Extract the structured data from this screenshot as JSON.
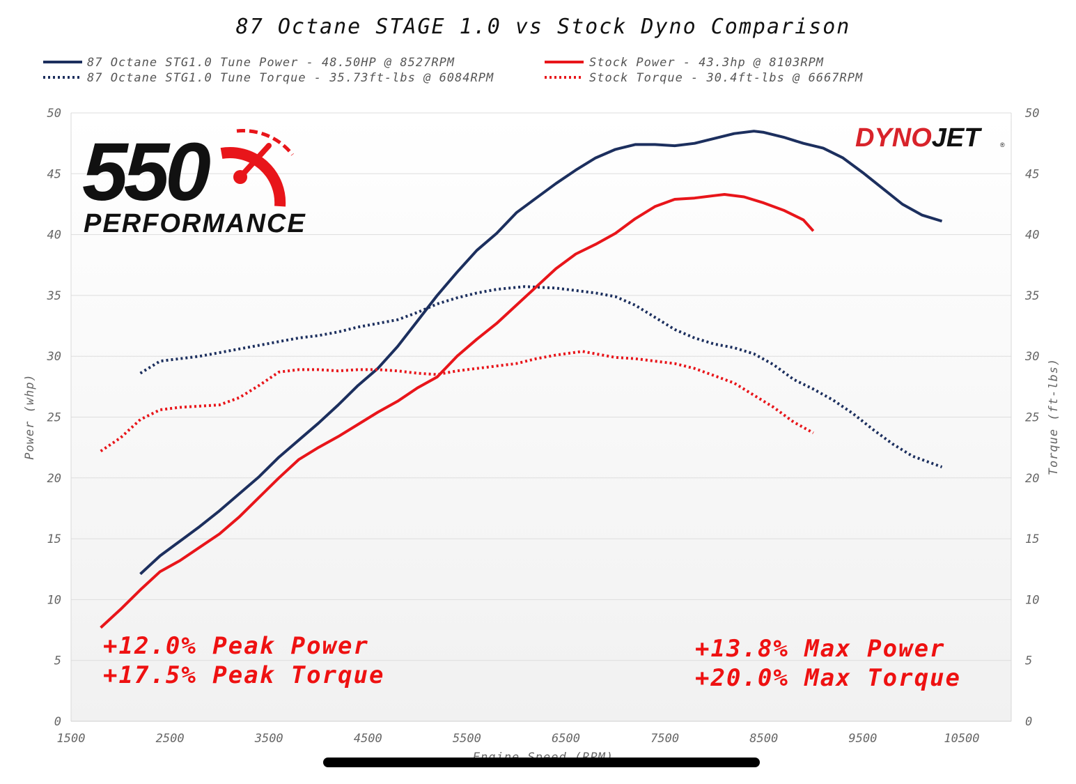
{
  "chart_data": {
    "type": "line",
    "title": "87 Octane STAGE 1.0 vs Stock Dyno Comparison",
    "xlabel": "Engine Speed (RPM)",
    "ylabel": "Power (whp)",
    "y2label": "Torque (ft-lbs)",
    "xlim": [
      1500,
      11000
    ],
    "ylim": [
      0,
      50
    ],
    "y2lim": [
      0,
      50
    ],
    "x_ticks": [
      "1500",
      "2500",
      "3500",
      "4500",
      "5500",
      "6500",
      "7500",
      "8500",
      "9500",
      "10500"
    ],
    "y_ticks": [
      "0",
      "5",
      "10",
      "15",
      "20",
      "25",
      "30",
      "35",
      "40",
      "45",
      "50"
    ],
    "grid": true,
    "legend_position": "top",
    "series": [
      {
        "name": "87 Octane STG1.0 Tune Power - 48.50HP @ 8527RPM",
        "axis": "left",
        "color": "#1c2f5e",
        "style": "solid",
        "x": [
          2200,
          2400,
          2600,
          2800,
          3000,
          3200,
          3400,
          3600,
          3800,
          4000,
          4200,
          4400,
          4600,
          4800,
          5000,
          5200,
          5400,
          5600,
          5800,
          6000,
          6200,
          6400,
          6600,
          6800,
          7000,
          7200,
          7400,
          7600,
          7800,
          8000,
          8200,
          8400,
          8500,
          8700,
          8900,
          9100,
          9300,
          9500,
          9700,
          9900,
          10100,
          10300
        ],
        "y": [
          12.1,
          13.6,
          14.8,
          16.0,
          17.3,
          18.7,
          20.1,
          21.7,
          23.1,
          24.5,
          26.0,
          27.6,
          29.0,
          30.8,
          32.9,
          35.0,
          36.9,
          38.7,
          40.1,
          41.8,
          43.0,
          44.2,
          45.3,
          46.3,
          47.0,
          47.4,
          47.4,
          47.3,
          47.5,
          47.9,
          48.3,
          48.5,
          48.4,
          48.0,
          47.5,
          47.1,
          46.3,
          45.1,
          43.8,
          42.5,
          41.6,
          41.1
        ]
      },
      {
        "name": "87 Octane STG1.0 Tune Torque - 35.73ft-lbs @ 6084RPM",
        "axis": "right",
        "color": "#1c2f5e",
        "style": "dotted",
        "x": [
          2200,
          2400,
          2600,
          2800,
          3000,
          3200,
          3400,
          3600,
          3800,
          4000,
          4200,
          4400,
          4600,
          4800,
          5000,
          5200,
          5400,
          5600,
          5800,
          6084,
          6400,
          6600,
          6800,
          7000,
          7200,
          7400,
          7600,
          7800,
          8000,
          8200,
          8400,
          8600,
          8800,
          9000,
          9200,
          9400,
          9600,
          9800,
          10000,
          10300
        ],
        "y": [
          28.6,
          29.6,
          29.8,
          30.0,
          30.3,
          30.6,
          30.9,
          31.2,
          31.5,
          31.7,
          32.0,
          32.4,
          32.7,
          33.0,
          33.6,
          34.3,
          34.8,
          35.2,
          35.5,
          35.73,
          35.6,
          35.4,
          35.2,
          34.9,
          34.2,
          33.2,
          32.2,
          31.5,
          31.0,
          30.7,
          30.2,
          29.3,
          28.1,
          27.3,
          26.4,
          25.3,
          24.0,
          22.8,
          21.8,
          20.9
        ]
      },
      {
        "name": "Stock Power - 43.3hp @ 8103RPM",
        "axis": "left",
        "color": "#e8151a",
        "style": "solid",
        "x": [
          1800,
          2000,
          2200,
          2400,
          2600,
          2800,
          3000,
          3200,
          3400,
          3600,
          3800,
          4000,
          4200,
          4400,
          4600,
          4800,
          5000,
          5200,
          5400,
          5600,
          5800,
          6000,
          6200,
          6400,
          6600,
          6800,
          7000,
          7200,
          7400,
          7600,
          7800,
          8000,
          8103,
          8300,
          8500,
          8700,
          8900,
          9000
        ],
        "y": [
          7.7,
          9.2,
          10.8,
          12.3,
          13.2,
          14.3,
          15.4,
          16.8,
          18.4,
          20.0,
          21.5,
          22.5,
          23.4,
          24.4,
          25.4,
          26.3,
          27.4,
          28.3,
          30.0,
          31.4,
          32.7,
          34.2,
          35.7,
          37.2,
          38.4,
          39.2,
          40.1,
          41.3,
          42.3,
          42.9,
          43.0,
          43.2,
          43.3,
          43.1,
          42.6,
          42.0,
          41.2,
          40.3
        ]
      },
      {
        "name": "Stock Torque - 30.4ft-lbs @ 6667RPM",
        "axis": "right",
        "color": "#e8151a",
        "style": "dotted",
        "x": [
          1800,
          2000,
          2200,
          2400,
          2600,
          2800,
          3000,
          3200,
          3400,
          3600,
          3800,
          4000,
          4200,
          4400,
          4600,
          4800,
          5000,
          5200,
          5400,
          5600,
          5800,
          6000,
          6200,
          6400,
          6667,
          6800,
          7000,
          7200,
          7400,
          7600,
          7800,
          8000,
          8200,
          8400,
          8600,
          8800,
          9000
        ],
        "y": [
          22.2,
          23.3,
          24.8,
          25.6,
          25.8,
          25.9,
          26.0,
          26.6,
          27.6,
          28.7,
          28.9,
          28.9,
          28.8,
          28.9,
          28.9,
          28.8,
          28.6,
          28.5,
          28.8,
          29.0,
          29.2,
          29.4,
          29.8,
          30.1,
          30.4,
          30.2,
          29.9,
          29.8,
          29.6,
          29.4,
          29.0,
          28.4,
          27.8,
          26.8,
          25.8,
          24.6,
          23.7
        ]
      }
    ],
    "annotations": [
      "+12.0% Peak Power",
      "+17.5% Peak Torque",
      "+13.8% Max Power",
      "+20.0% Max Torque"
    ]
  },
  "logo": {
    "number": "550",
    "word": "PERFORMANCE"
  },
  "brand": {
    "part1": "DYNO",
    "part2": "JET",
    "mark": "®",
    "part1_color": "#d8232a",
    "part2_color": "#111111"
  }
}
